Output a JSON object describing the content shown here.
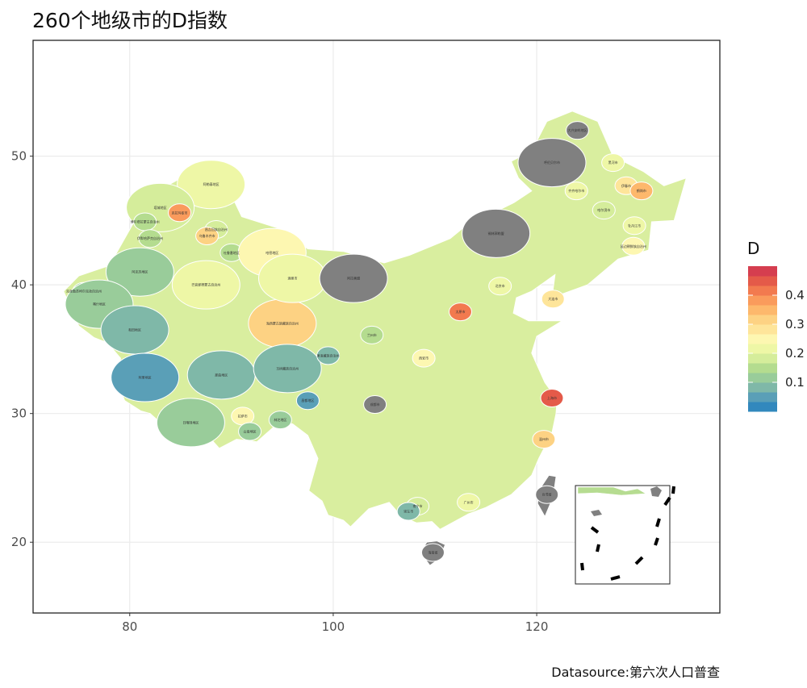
{
  "title": "260个地级市的D指数",
  "caption": "Datasource:第六次人口普查",
  "chart_data": {
    "type": "choropleth map",
    "title": "260个地级市的D指数",
    "xlabel": "",
    "ylabel": "",
    "x_ticks": [
      80,
      100,
      120
    ],
    "y_ticks": [
      20,
      30,
      40,
      50
    ],
    "xlim": [
      70.5,
      138
    ],
    "ylim": [
      14.5,
      59
    ],
    "legend": {
      "title": "D",
      "position": "right",
      "ticks": [
        0.1,
        0.2,
        0.3,
        0.4
      ],
      "range": [
        0,
        0.5
      ],
      "colors": [
        "#3288bd",
        "#5a9fb7",
        "#7fb8a8",
        "#99cc9a",
        "#b4dc8f",
        "#d5ed9b",
        "#eef7a6",
        "#fdf7b1",
        "#fee59a",
        "#fdd283",
        "#fdb86c",
        "#fa9b5c",
        "#f27a4f",
        "#e45a49",
        "#d53e4f"
      ]
    },
    "no_data_color": "#808080",
    "grid": true,
    "inset": "南海诸岛"
  },
  "regions": [
    {
      "name": "阿勒泰地区",
      "lon": 88,
      "lat": 47.8,
      "D": 0.22
    },
    {
      "name": "塔城地区",
      "lon": 83,
      "lat": 46,
      "D": 0.18
    },
    {
      "name": "克拉玛依市",
      "lon": 84.9,
      "lat": 45.6,
      "D": 0.38
    },
    {
      "name": "博尔塔拉蒙古自治州",
      "lon": 81.5,
      "lat": 44.9,
      "D": 0.16
    },
    {
      "name": "伊犁哈萨克自治州",
      "lon": 82,
      "lat": 43.6,
      "D": 0.14
    },
    {
      "name": "昌吉回族自治州",
      "lon": 88.5,
      "lat": 44.3,
      "D": 0.19
    },
    {
      "name": "乌鲁木齐市",
      "lon": 87.6,
      "lat": 43.8,
      "D": 0.33
    },
    {
      "name": "吐鲁番地区",
      "lon": 90,
      "lat": 42.5,
      "D": 0.15
    },
    {
      "name": "哈密地区",
      "lon": 94,
      "lat": 42.5,
      "D": 0.25
    },
    {
      "name": "巴音郭楞蒙古自治州",
      "lon": 87.5,
      "lat": 40,
      "D": 0.2
    },
    {
      "name": "阿克苏地区",
      "lon": 81,
      "lat": 41,
      "D": 0.12
    },
    {
      "name": "克孜勒苏柯尔克孜自治州",
      "lon": 75.5,
      "lat": 39.5,
      "D": 0.13
    },
    {
      "name": "喀什地区",
      "lon": 77,
      "lat": 38.5,
      "D": 0.13
    },
    {
      "name": "和田地区",
      "lon": 80.5,
      "lat": 36.5,
      "D": 0.09
    },
    {
      "name": "阿里地区",
      "lon": 81.5,
      "lat": 32.8,
      "D": 0.05
    },
    {
      "name": "那曲地区",
      "lon": 89,
      "lat": 33,
      "D": 0.07
    },
    {
      "name": "日喀则地区",
      "lon": 86,
      "lat": 29.3,
      "D": 0.1
    },
    {
      "name": "拉萨市",
      "lon": 91.1,
      "lat": 29.8,
      "D": 0.26
    },
    {
      "name": "山南地区",
      "lon": 91.8,
      "lat": 28.6,
      "D": 0.12
    },
    {
      "name": "林芝地区",
      "lon": 94.8,
      "lat": 29.5,
      "D": 0.13
    },
    {
      "name": "昌都地区",
      "lon": 97.5,
      "lat": 31,
      "D": 0.04
    },
    {
      "name": "海西蒙古族藏族自治州",
      "lon": 95,
      "lat": 37,
      "D": 0.3
    },
    {
      "name": "玉树藏族自治州",
      "lon": 95.5,
      "lat": 33.5,
      "D": 0.09
    },
    {
      "name": "果洛藏族自治州",
      "lon": 99.5,
      "lat": 34.5,
      "D": 0.08
    },
    {
      "name": "酒泉市",
      "lon": 96,
      "lat": 40.5,
      "D": 0.21
    },
    {
      "name": "阿拉善盟",
      "lon": 102,
      "lat": 40.5,
      "D": null
    },
    {
      "name": "呼伦贝尔市",
      "lon": 121.5,
      "lat": 49.5,
      "D": null
    },
    {
      "name": "大兴安岭地区",
      "lon": 124,
      "lat": 52,
      "D": null
    },
    {
      "name": "锡林郭勒盟",
      "lon": 116,
      "lat": 44,
      "D": null
    },
    {
      "name": "黑河市",
      "lon": 127.5,
      "lat": 49.5,
      "D": 0.22
    },
    {
      "name": "伊春市",
      "lon": 128.8,
      "lat": 47.7,
      "D": 0.28
    },
    {
      "name": "鹤岗市",
      "lon": 130.3,
      "lat": 47.3,
      "D": 0.36
    },
    {
      "name": "齐齐哈尔市",
      "lon": 123.9,
      "lat": 47.3,
      "D": 0.2
    },
    {
      "name": "哈尔滨市",
      "lon": 126.6,
      "lat": 45.8,
      "D": 0.18
    },
    {
      "name": "牡丹江市",
      "lon": 129.6,
      "lat": 44.6,
      "D": 0.22
    },
    {
      "name": "延边朝鲜族自治州",
      "lon": 129.5,
      "lat": 43,
      "D": 0.26
    },
    {
      "name": "大连市",
      "lon": 121.6,
      "lat": 38.9,
      "D": 0.27
    },
    {
      "name": "北京市",
      "lon": 116.4,
      "lat": 39.9,
      "D": 0.22
    },
    {
      "name": "太原市",
      "lon": 112.5,
      "lat": 37.9,
      "D": 0.42
    },
    {
      "name": "西安市",
      "lon": 108.9,
      "lat": 34.3,
      "D": 0.24
    },
    {
      "name": "兰州市",
      "lon": 103.8,
      "lat": 36.1,
      "D": 0.14
    },
    {
      "name": "成都市",
      "lon": 104.1,
      "lat": 30.7,
      "D": null
    },
    {
      "name": "上海市",
      "lon": 121.5,
      "lat": 31.2,
      "D": 0.45
    },
    {
      "name": "温州市",
      "lon": 120.7,
      "lat": 28,
      "D": 0.3
    },
    {
      "name": "广州市",
      "lon": 113.3,
      "lat": 23.1,
      "D": 0.22
    },
    {
      "name": "南宁市",
      "lon": 108.3,
      "lat": 22.8,
      "D": 0.18
    },
    {
      "name": "崇左市",
      "lon": 107.4,
      "lat": 22.4,
      "D": 0.08
    },
    {
      "name": "台湾省",
      "lon": 121,
      "lat": 23.7,
      "D": null
    },
    {
      "name": "海南省",
      "lon": 109.8,
      "lat": 19.2,
      "D": null
    }
  ]
}
